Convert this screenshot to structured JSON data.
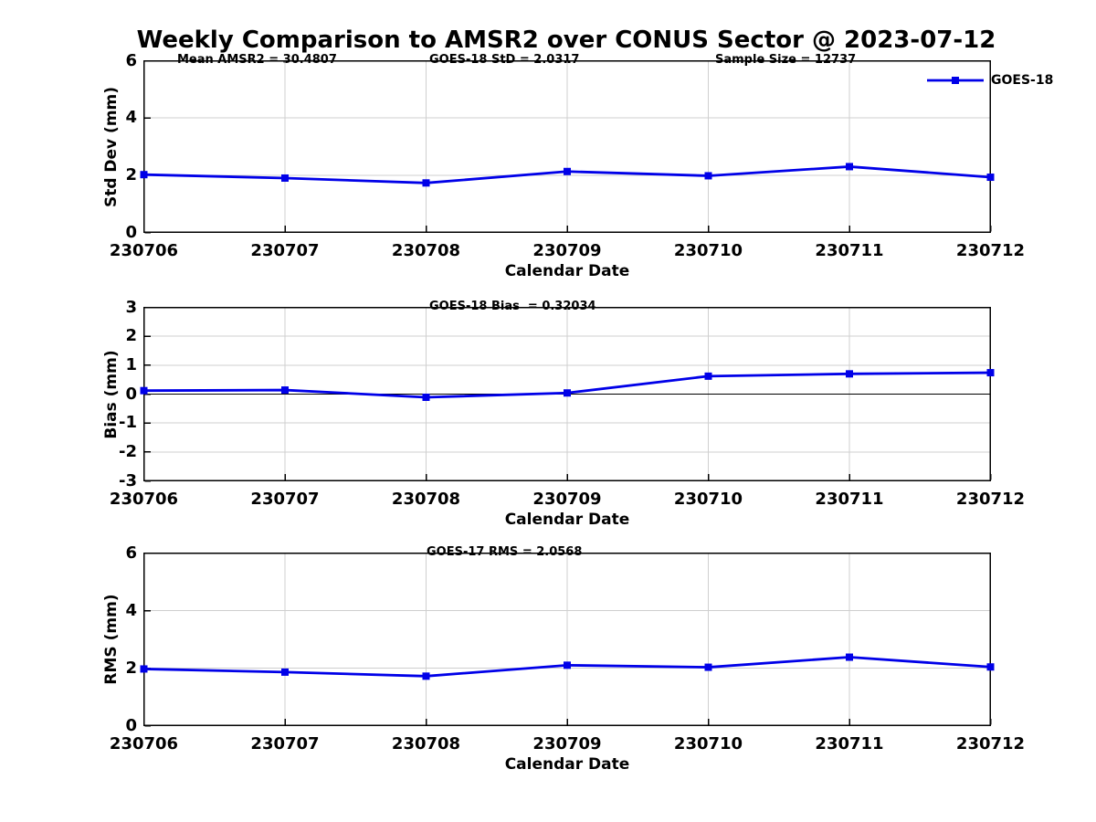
{
  "figure": {
    "title": "Weekly Comparison to AMSR2 over CONUS Sector @ 2023-07-12"
  },
  "colors": {
    "line": "#0000e8",
    "grid": "#cfcfcf",
    "axis": "#000000",
    "zero_line": "#000000",
    "text": "#000000",
    "background": "#ffffff"
  },
  "chart_data": [
    {
      "type": "line",
      "name": "std-dev-vs-date",
      "annotations": [
        {
          "text": "Mean AMSR2 = 30.4807"
        },
        {
          "text": "GOES-18 StD = 2.0317"
        },
        {
          "text": "Sample Size = 12737"
        }
      ],
      "categories": [
        "230706",
        "230707",
        "230708",
        "230709",
        "230710",
        "230711",
        "230712"
      ],
      "series": [
        {
          "name": "GOES-18",
          "values": [
            2.02,
            1.9,
            1.73,
            2.13,
            1.98,
            2.3,
            1.93
          ]
        }
      ],
      "xlabel": "Calendar Date",
      "ylabel": "Std Dev (mm)",
      "ylim": [
        0,
        6
      ],
      "yticks": [
        0,
        2,
        4,
        6
      ],
      "grid": true,
      "marker": "square",
      "legend": {
        "label": "GOES-18",
        "position": "top-right"
      }
    },
    {
      "type": "line",
      "name": "bias-vs-date",
      "annotations": [
        {
          "text": "GOES-18 Bias  = 0.32034"
        }
      ],
      "categories": [
        "230706",
        "230707",
        "230708",
        "230709",
        "230710",
        "230711",
        "230712"
      ],
      "series": [
        {
          "name": "GOES-18",
          "values": [
            0.12,
            0.14,
            -0.11,
            0.04,
            0.62,
            0.7,
            0.74
          ]
        }
      ],
      "xlabel": "Calendar Date",
      "ylabel": "Bias (mm)",
      "ylim": [
        -3,
        3
      ],
      "yticks": [
        -3,
        -2,
        -1,
        0,
        1,
        2,
        3
      ],
      "grid": true,
      "zero_line": true,
      "marker": "square"
    },
    {
      "type": "line",
      "name": "rms-vs-date",
      "annotations": [
        {
          "text": "GOES-17 RMS = 2.0568"
        }
      ],
      "categories": [
        "230706",
        "230707",
        "230708",
        "230709",
        "230710",
        "230711",
        "230712"
      ],
      "series": [
        {
          "name": "GOES-18",
          "values": [
            1.97,
            1.86,
            1.72,
            2.1,
            2.03,
            2.38,
            2.04
          ]
        }
      ],
      "xlabel": "Calendar Date",
      "ylabel": "RMS (mm)",
      "ylim": [
        0,
        6
      ],
      "yticks": [
        0,
        2,
        4,
        6
      ],
      "grid": true,
      "marker": "square"
    }
  ]
}
